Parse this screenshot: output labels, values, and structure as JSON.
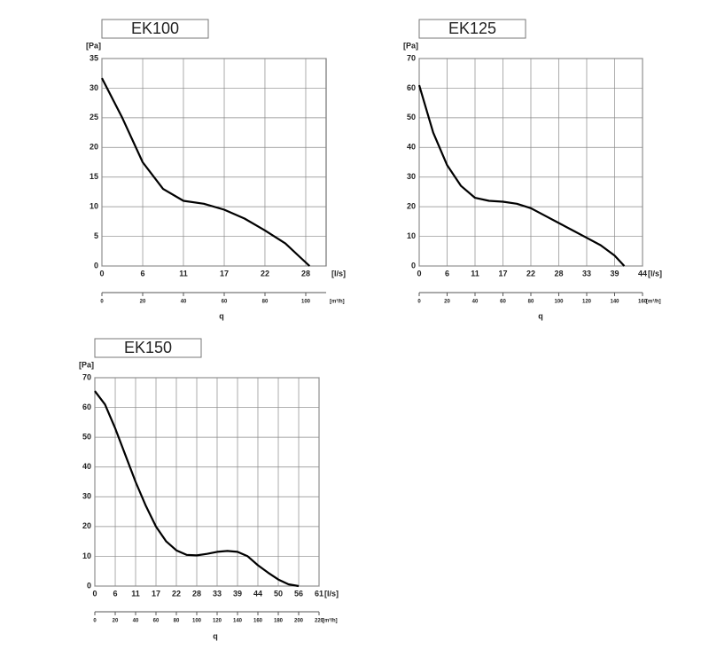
{
  "chart_data": [
    {
      "type": "line",
      "title": "EK100",
      "ylabel": "[Pa]",
      "xlabel": "[l/s]",
      "x2label": "[m³/h]",
      "axis_label": "q",
      "color": "#000000",
      "grid": true,
      "xlim": [
        0,
        30.56
      ],
      "ylim": [
        0,
        35
      ],
      "x2lim": [
        0,
        110
      ],
      "xticks": [
        0,
        {
          "value": 5.56,
          "label": "6"
        },
        {
          "value": 11.11,
          "label": "11"
        },
        {
          "value": 16.67,
          "label": "17"
        },
        {
          "value": 22.22,
          "label": "22"
        },
        {
          "value": 27.78,
          "label": "28"
        }
      ],
      "yticks": [
        0,
        5,
        10,
        15,
        20,
        25,
        30,
        35
      ],
      "x2ticks": [
        0,
        20,
        40,
        60,
        80,
        100
      ],
      "x": [
        0,
        2.78,
        5.56,
        8.33,
        11.11,
        13.89,
        16.67,
        19.44,
        22.22,
        25,
        27,
        28.3
      ],
      "values": [
        31.7,
        25,
        17.5,
        13,
        11,
        10.5,
        9.5,
        8,
        6,
        3.8,
        1.5,
        0
      ]
    },
    {
      "type": "line",
      "title": "EK125",
      "ylabel": "[Pa]",
      "xlabel": "[l/s]",
      "x2label": "[m³/h]",
      "axis_label": "q",
      "color": "#000000",
      "grid": true,
      "xlim": [
        0,
        44.44
      ],
      "ylim": [
        0,
        70
      ],
      "x2lim": [
        0,
        160
      ],
      "xticks": [
        0,
        {
          "value": 5.56,
          "label": "6"
        },
        {
          "value": 11.11,
          "label": "11"
        },
        {
          "value": 16.67,
          "label": "17"
        },
        {
          "value": 22.22,
          "label": "22"
        },
        {
          "value": 27.78,
          "label": "28"
        },
        {
          "value": 33.33,
          "label": "33"
        },
        {
          "value": 38.89,
          "label": "39"
        },
        {
          "value": 44.44,
          "label": "44"
        }
      ],
      "yticks": [
        0,
        10,
        20,
        30,
        40,
        50,
        60,
        70
      ],
      "x2ticks": [
        0,
        20,
        40,
        60,
        80,
        100,
        120,
        140,
        160
      ],
      "x": [
        0,
        2.78,
        5.56,
        8.33,
        11.11,
        13.89,
        16.67,
        19.44,
        22.22,
        25,
        27.78,
        30.56,
        33.33,
        36.11,
        38.89,
        40.8
      ],
      "values": [
        61,
        45,
        34,
        27,
        23,
        22,
        21.7,
        21,
        19.5,
        17,
        14.5,
        12,
        9.5,
        7,
        3.5,
        0
      ]
    },
    {
      "type": "line",
      "title": "EK150",
      "ylabel": "[Pa]",
      "xlabel": "[l/s]",
      "x2label": "[m³/h]",
      "axis_label": "q",
      "color": "#000000",
      "grid": true,
      "xlim": [
        0,
        61.11
      ],
      "ylim": [
        0,
        70
      ],
      "x2lim": [
        0,
        220
      ],
      "xticks": [
        0,
        {
          "value": 5.56,
          "label": "6"
        },
        {
          "value": 11.11,
          "label": "11"
        },
        {
          "value": 16.67,
          "label": "17"
        },
        {
          "value": 22.22,
          "label": "22"
        },
        {
          "value": 27.78,
          "label": "28"
        },
        {
          "value": 33.33,
          "label": "33"
        },
        {
          "value": 38.89,
          "label": "39"
        },
        {
          "value": 44.44,
          "label": "44"
        },
        {
          "value": 50,
          "label": "50"
        },
        {
          "value": 55.56,
          "label": "56"
        },
        {
          "value": 61.11,
          "label": "61"
        }
      ],
      "yticks": [
        0,
        10,
        20,
        30,
        40,
        50,
        60,
        70
      ],
      "x2ticks": [
        0,
        20,
        40,
        60,
        80,
        100,
        120,
        140,
        160,
        180,
        200,
        220
      ],
      "x": [
        0,
        2.78,
        5.56,
        8.33,
        11.11,
        13.89,
        16.67,
        19.44,
        22.22,
        25,
        27.78,
        30.56,
        33.33,
        36.11,
        38.89,
        41.67,
        44.44,
        47.22,
        50,
        52.78,
        55.56
      ],
      "values": [
        65.5,
        61,
        53,
        44,
        35,
        27,
        20,
        15,
        12,
        10.5,
        10.3,
        10.8,
        11.5,
        11.8,
        11.5,
        10,
        7,
        4.5,
        2.2,
        0.6,
        0
      ]
    }
  ]
}
